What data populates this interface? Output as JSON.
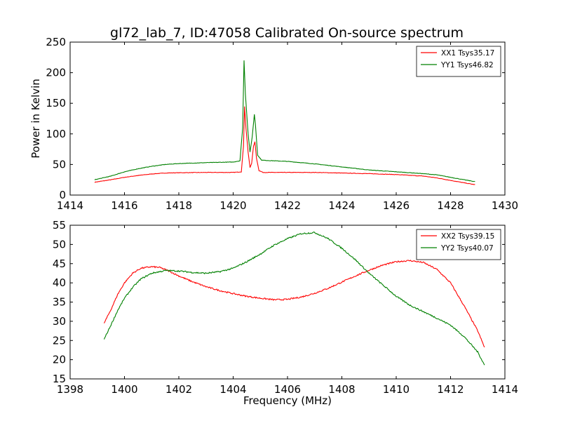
{
  "figure_title": "gl72_lab_7, ID:47058 Calibrated On-source spectrum",
  "chart_data": [
    {
      "type": "line",
      "title": "gl72_lab_7, ID:47058 Calibrated On-source spectrum",
      "xlabel": "",
      "ylabel": "Power in Kelvin",
      "xlim": [
        1414,
        1430
      ],
      "ylim": [
        0,
        250
      ],
      "xticks": [
        1414,
        1416,
        1418,
        1420,
        1422,
        1424,
        1426,
        1428,
        1430
      ],
      "yticks": [
        0,
        50,
        100,
        150,
        200,
        250
      ],
      "legend_position": "top-right",
      "grid": false,
      "series": [
        {
          "name": "XX1 Tsys35.17",
          "color": "#ff0000",
          "points": [
            [
              1414.9,
              21
            ],
            [
              1415.5,
              25
            ],
            [
              1416.0,
              29
            ],
            [
              1416.5,
              32
            ],
            [
              1417.0,
              34.5
            ],
            [
              1417.5,
              36
            ],
            [
              1418.0,
              36.5
            ],
            [
              1419.0,
              37
            ],
            [
              1420.0,
              37
            ],
            [
              1420.3,
              38
            ],
            [
              1420.38,
              80
            ],
            [
              1420.42,
              145
            ],
            [
              1420.47,
              110
            ],
            [
              1420.55,
              70
            ],
            [
              1420.62,
              45
            ],
            [
              1420.68,
              52
            ],
            [
              1420.75,
              80
            ],
            [
              1420.8,
              87
            ],
            [
              1420.86,
              60
            ],
            [
              1420.95,
              40
            ],
            [
              1421.1,
              37
            ],
            [
              1422.0,
              37
            ],
            [
              1423.0,
              37
            ],
            [
              1424.0,
              36
            ],
            [
              1425.0,
              35
            ],
            [
              1426.0,
              33.5
            ],
            [
              1427.0,
              31
            ],
            [
              1427.5,
              28
            ],
            [
              1428.0,
              24
            ],
            [
              1428.5,
              20
            ],
            [
              1428.9,
              17
            ]
          ]
        },
        {
          "name": "YY1 Tsys46.82",
          "color": "#008000",
          "points": [
            [
              1414.9,
              25
            ],
            [
              1415.5,
              31
            ],
            [
              1416.0,
              38
            ],
            [
              1416.5,
              43
            ],
            [
              1417.0,
              47
            ],
            [
              1417.5,
              50
            ],
            [
              1418.0,
              51.5
            ],
            [
              1419.0,
              53
            ],
            [
              1420.0,
              54
            ],
            [
              1420.25,
              56
            ],
            [
              1420.35,
              110
            ],
            [
              1420.4,
              220
            ],
            [
              1420.45,
              165
            ],
            [
              1420.55,
              100
            ],
            [
              1420.62,
              70
            ],
            [
              1420.7,
              95
            ],
            [
              1420.78,
              132
            ],
            [
              1420.82,
              115
            ],
            [
              1420.9,
              65
            ],
            [
              1421.05,
              57
            ],
            [
              1421.5,
              56
            ],
            [
              1422.0,
              55
            ],
            [
              1423.0,
              51
            ],
            [
              1424.0,
              46
            ],
            [
              1425.0,
              41
            ],
            [
              1426.0,
              38
            ],
            [
              1427.0,
              35
            ],
            [
              1427.5,
              33
            ],
            [
              1428.0,
              29
            ],
            [
              1428.5,
              25
            ],
            [
              1428.9,
              22
            ]
          ]
        }
      ]
    },
    {
      "type": "line",
      "title": "",
      "xlabel": "Frequency (MHz)",
      "ylabel": "",
      "xlim": [
        1398,
        1414
      ],
      "ylim": [
        15,
        55
      ],
      "xticks": [
        1398,
        1400,
        1402,
        1404,
        1406,
        1408,
        1410,
        1412,
        1414
      ],
      "yticks": [
        15,
        20,
        25,
        30,
        35,
        40,
        45,
        50,
        55
      ],
      "legend_position": "top-right",
      "grid": false,
      "series": [
        {
          "name": "XX2 Tsys39.15",
          "color": "#ff0000",
          "points": [
            [
              1399.25,
              29.5
            ],
            [
              1399.5,
              33
            ],
            [
              1399.75,
              37
            ],
            [
              1400.0,
              40
            ],
            [
              1400.3,
              42.5
            ],
            [
              1400.6,
              43.8
            ],
            [
              1401.0,
              44.2
            ],
            [
              1401.3,
              44
            ],
            [
              1401.6,
              43.2
            ],
            [
              1402.0,
              41.8
            ],
            [
              1402.5,
              40.3
            ],
            [
              1403.0,
              39
            ],
            [
              1403.5,
              38
            ],
            [
              1404.0,
              37.2
            ],
            [
              1404.5,
              36.5
            ],
            [
              1405.0,
              36
            ],
            [
              1405.5,
              35.6
            ],
            [
              1406.0,
              35.7
            ],
            [
              1406.5,
              36.3
            ],
            [
              1407.0,
              37.3
            ],
            [
              1407.5,
              38.6
            ],
            [
              1408.0,
              40.2
            ],
            [
              1408.5,
              41.8
            ],
            [
              1409.0,
              43.3
            ],
            [
              1409.5,
              44.6
            ],
            [
              1410.0,
              45.5
            ],
            [
              1410.5,
              45.8
            ],
            [
              1411.0,
              45.3
            ],
            [
              1411.5,
              43.5
            ],
            [
              1412.0,
              40
            ],
            [
              1412.5,
              34
            ],
            [
              1413.0,
              27.5
            ],
            [
              1413.25,
              23.2
            ]
          ]
        },
        {
          "name": "YY2 Tsys40.07",
          "color": "#008000",
          "points": [
            [
              1399.25,
              25.3
            ],
            [
              1399.5,
              29
            ],
            [
              1399.75,
              32.8
            ],
            [
              1400.0,
              36
            ],
            [
              1400.3,
              38.8
            ],
            [
              1400.6,
              41
            ],
            [
              1401.0,
              42.5
            ],
            [
              1401.5,
              43.2
            ],
            [
              1402.0,
              43.1
            ],
            [
              1402.5,
              42.7
            ],
            [
              1403.0,
              42.5
            ],
            [
              1403.5,
              42.9
            ],
            [
              1404.0,
              43.8
            ],
            [
              1404.5,
              45.5
            ],
            [
              1405.0,
              47.5
            ],
            [
              1405.5,
              49.8
            ],
            [
              1406.0,
              51.5
            ],
            [
              1406.5,
              52.8
            ],
            [
              1407.0,
              53.1
            ],
            [
              1407.5,
              51.5
            ],
            [
              1408.0,
              49
            ],
            [
              1408.5,
              46
            ],
            [
              1409.0,
              42.5
            ],
            [
              1409.5,
              39.5
            ],
            [
              1410.0,
              36.5
            ],
            [
              1410.5,
              34.2
            ],
            [
              1411.0,
              32.5
            ],
            [
              1411.5,
              30.8
            ],
            [
              1412.0,
              29
            ],
            [
              1412.5,
              26
            ],
            [
              1413.0,
              22
            ],
            [
              1413.25,
              18.6
            ]
          ]
        }
      ]
    }
  ]
}
